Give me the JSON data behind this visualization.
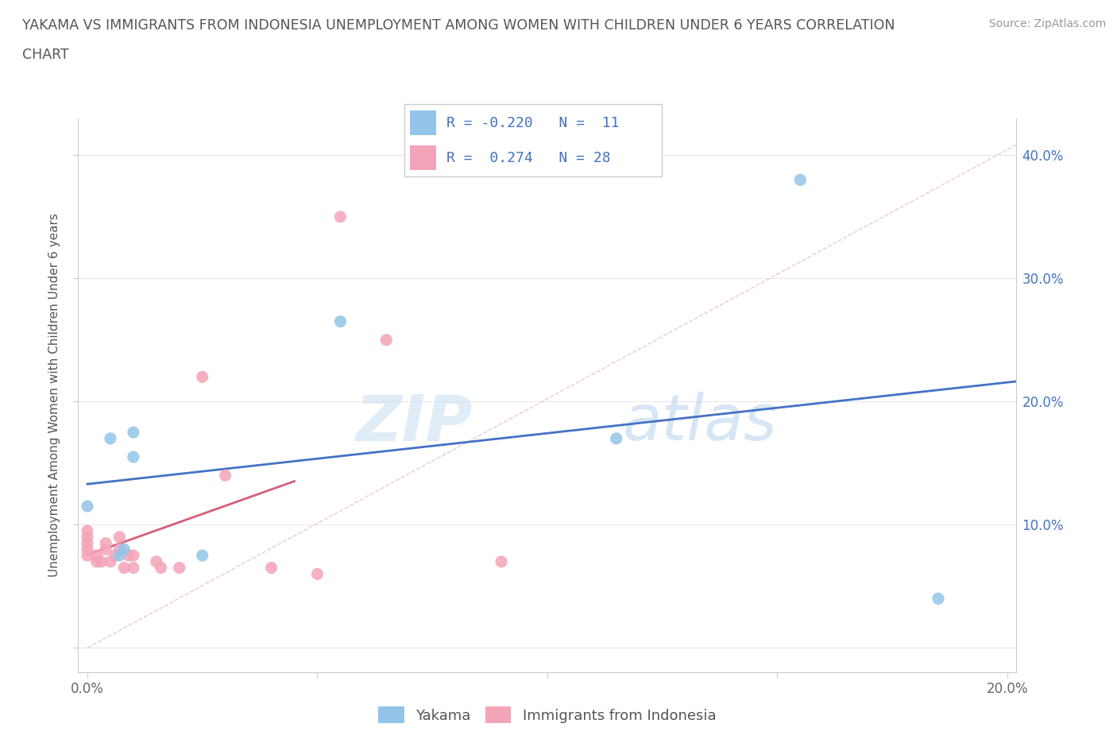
{
  "title_line1": "YAKAMA VS IMMIGRANTS FROM INDONESIA UNEMPLOYMENT AMONG WOMEN WITH CHILDREN UNDER 6 YEARS CORRELATION",
  "title_line2": "CHART",
  "source": "Source: ZipAtlas.com",
  "ylabel": "Unemployment Among Women with Children Under 6 years",
  "xmin": -0.002,
  "xmax": 0.202,
  "ymin": -0.02,
  "ymax": 0.43,
  "xticks": [
    0.0,
    0.05,
    0.1,
    0.15,
    0.2
  ],
  "xtick_labels": [
    "0.0%",
    "",
    "",
    "",
    "20.0%"
  ],
  "yticks": [
    0.0,
    0.1,
    0.2,
    0.3,
    0.4
  ],
  "ytick_labels_left": [
    "",
    "",
    "",
    "",
    ""
  ],
  "ytick_labels_right": [
    "",
    "10.0%",
    "20.0%",
    "30.0%",
    "40.0%"
  ],
  "yakama_color": "#92c5e8",
  "indonesia_color": "#f4a4b8",
  "trendline_yakama_color": "#4472c4",
  "trendline_indonesia_color": "#d45f7a",
  "watermark_zip": "ZIP",
  "watermark_atlas": "atlas",
  "legend_r_yakama": "-0.220",
  "legend_n_yakama": "11",
  "legend_r_indonesia": "0.274",
  "legend_n_indonesia": "28",
  "yakama_x": [
    0.0,
    0.005,
    0.01,
    0.01,
    0.055,
    0.115,
    0.155,
    0.185,
    0.025,
    0.007,
    0.008
  ],
  "yakama_y": [
    0.115,
    0.17,
    0.155,
    0.175,
    0.265,
    0.17,
    0.38,
    0.04,
    0.075,
    0.075,
    0.08
  ],
  "indonesia_x": [
    0.0,
    0.0,
    0.0,
    0.0,
    0.0,
    0.002,
    0.002,
    0.003,
    0.004,
    0.004,
    0.005,
    0.006,
    0.007,
    0.007,
    0.008,
    0.009,
    0.01,
    0.01,
    0.015,
    0.016,
    0.02,
    0.025,
    0.03,
    0.04,
    0.05,
    0.055,
    0.065,
    0.09
  ],
  "indonesia_y": [
    0.075,
    0.08,
    0.085,
    0.09,
    0.095,
    0.07,
    0.075,
    0.07,
    0.08,
    0.085,
    0.07,
    0.075,
    0.08,
    0.09,
    0.065,
    0.075,
    0.065,
    0.075,
    0.07,
    0.065,
    0.065,
    0.22,
    0.14,
    0.065,
    0.06,
    0.35,
    0.25,
    0.07
  ],
  "diag_line_color": "#e0b0b8",
  "grid_color": "#e8e8e8",
  "spine_color": "#cccccc"
}
